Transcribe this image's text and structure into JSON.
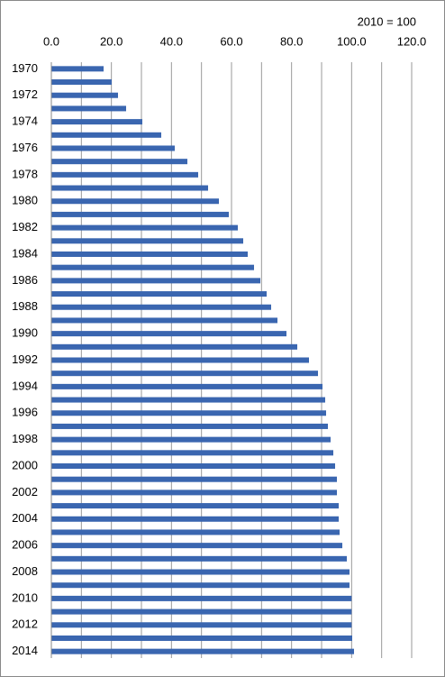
{
  "chart_data": {
    "type": "bar",
    "orientation": "horizontal",
    "annotation": "2010 = 100",
    "categories": [
      "1970",
      null,
      "1972",
      null,
      "1974",
      null,
      "1976",
      null,
      "1978",
      null,
      "1980",
      null,
      "1982",
      null,
      "1984",
      null,
      "1986",
      null,
      "1988",
      null,
      "1990",
      null,
      "1992",
      null,
      "1994",
      null,
      "1996",
      null,
      "1998",
      null,
      "2000",
      null,
      "2002",
      null,
      "2004",
      null,
      "2006",
      null,
      "2008",
      null,
      "2010",
      null,
      "2012",
      null,
      "2014"
    ],
    "values": [
      17.4,
      20.1,
      22.2,
      24.9,
      30.3,
      36.6,
      41.1,
      45.3,
      48.9,
      52.2,
      55.8,
      59.1,
      62.1,
      63.9,
      65.4,
      67.5,
      69.6,
      71.7,
      73.2,
      75.3,
      78.3,
      81.9,
      85.8,
      88.8,
      90.3,
      91.2,
      91.5,
      92.1,
      93.0,
      93.9,
      94.5,
      95.1,
      95.1,
      95.7,
      95.7,
      96.0,
      96.9,
      98.4,
      99.3,
      99.3,
      100,
      100,
      100,
      100.2,
      100.8
    ],
    "color": "#3a66b0",
    "xlim": [
      0,
      120
    ],
    "xticks": [
      {
        "value": 0,
        "label": "0.0"
      },
      {
        "value": 20,
        "label": "20.0"
      },
      {
        "value": 40,
        "label": "40.0"
      },
      {
        "value": 60,
        "label": "60.0"
      },
      {
        "value": 80,
        "label": "80.0"
      },
      {
        "value": 100,
        "label": "100.0"
      },
      {
        "value": 120,
        "label": "120.0"
      }
    ],
    "minor_xticks": [
      10,
      30,
      50,
      70,
      90,
      110
    ],
    "grid": true
  }
}
